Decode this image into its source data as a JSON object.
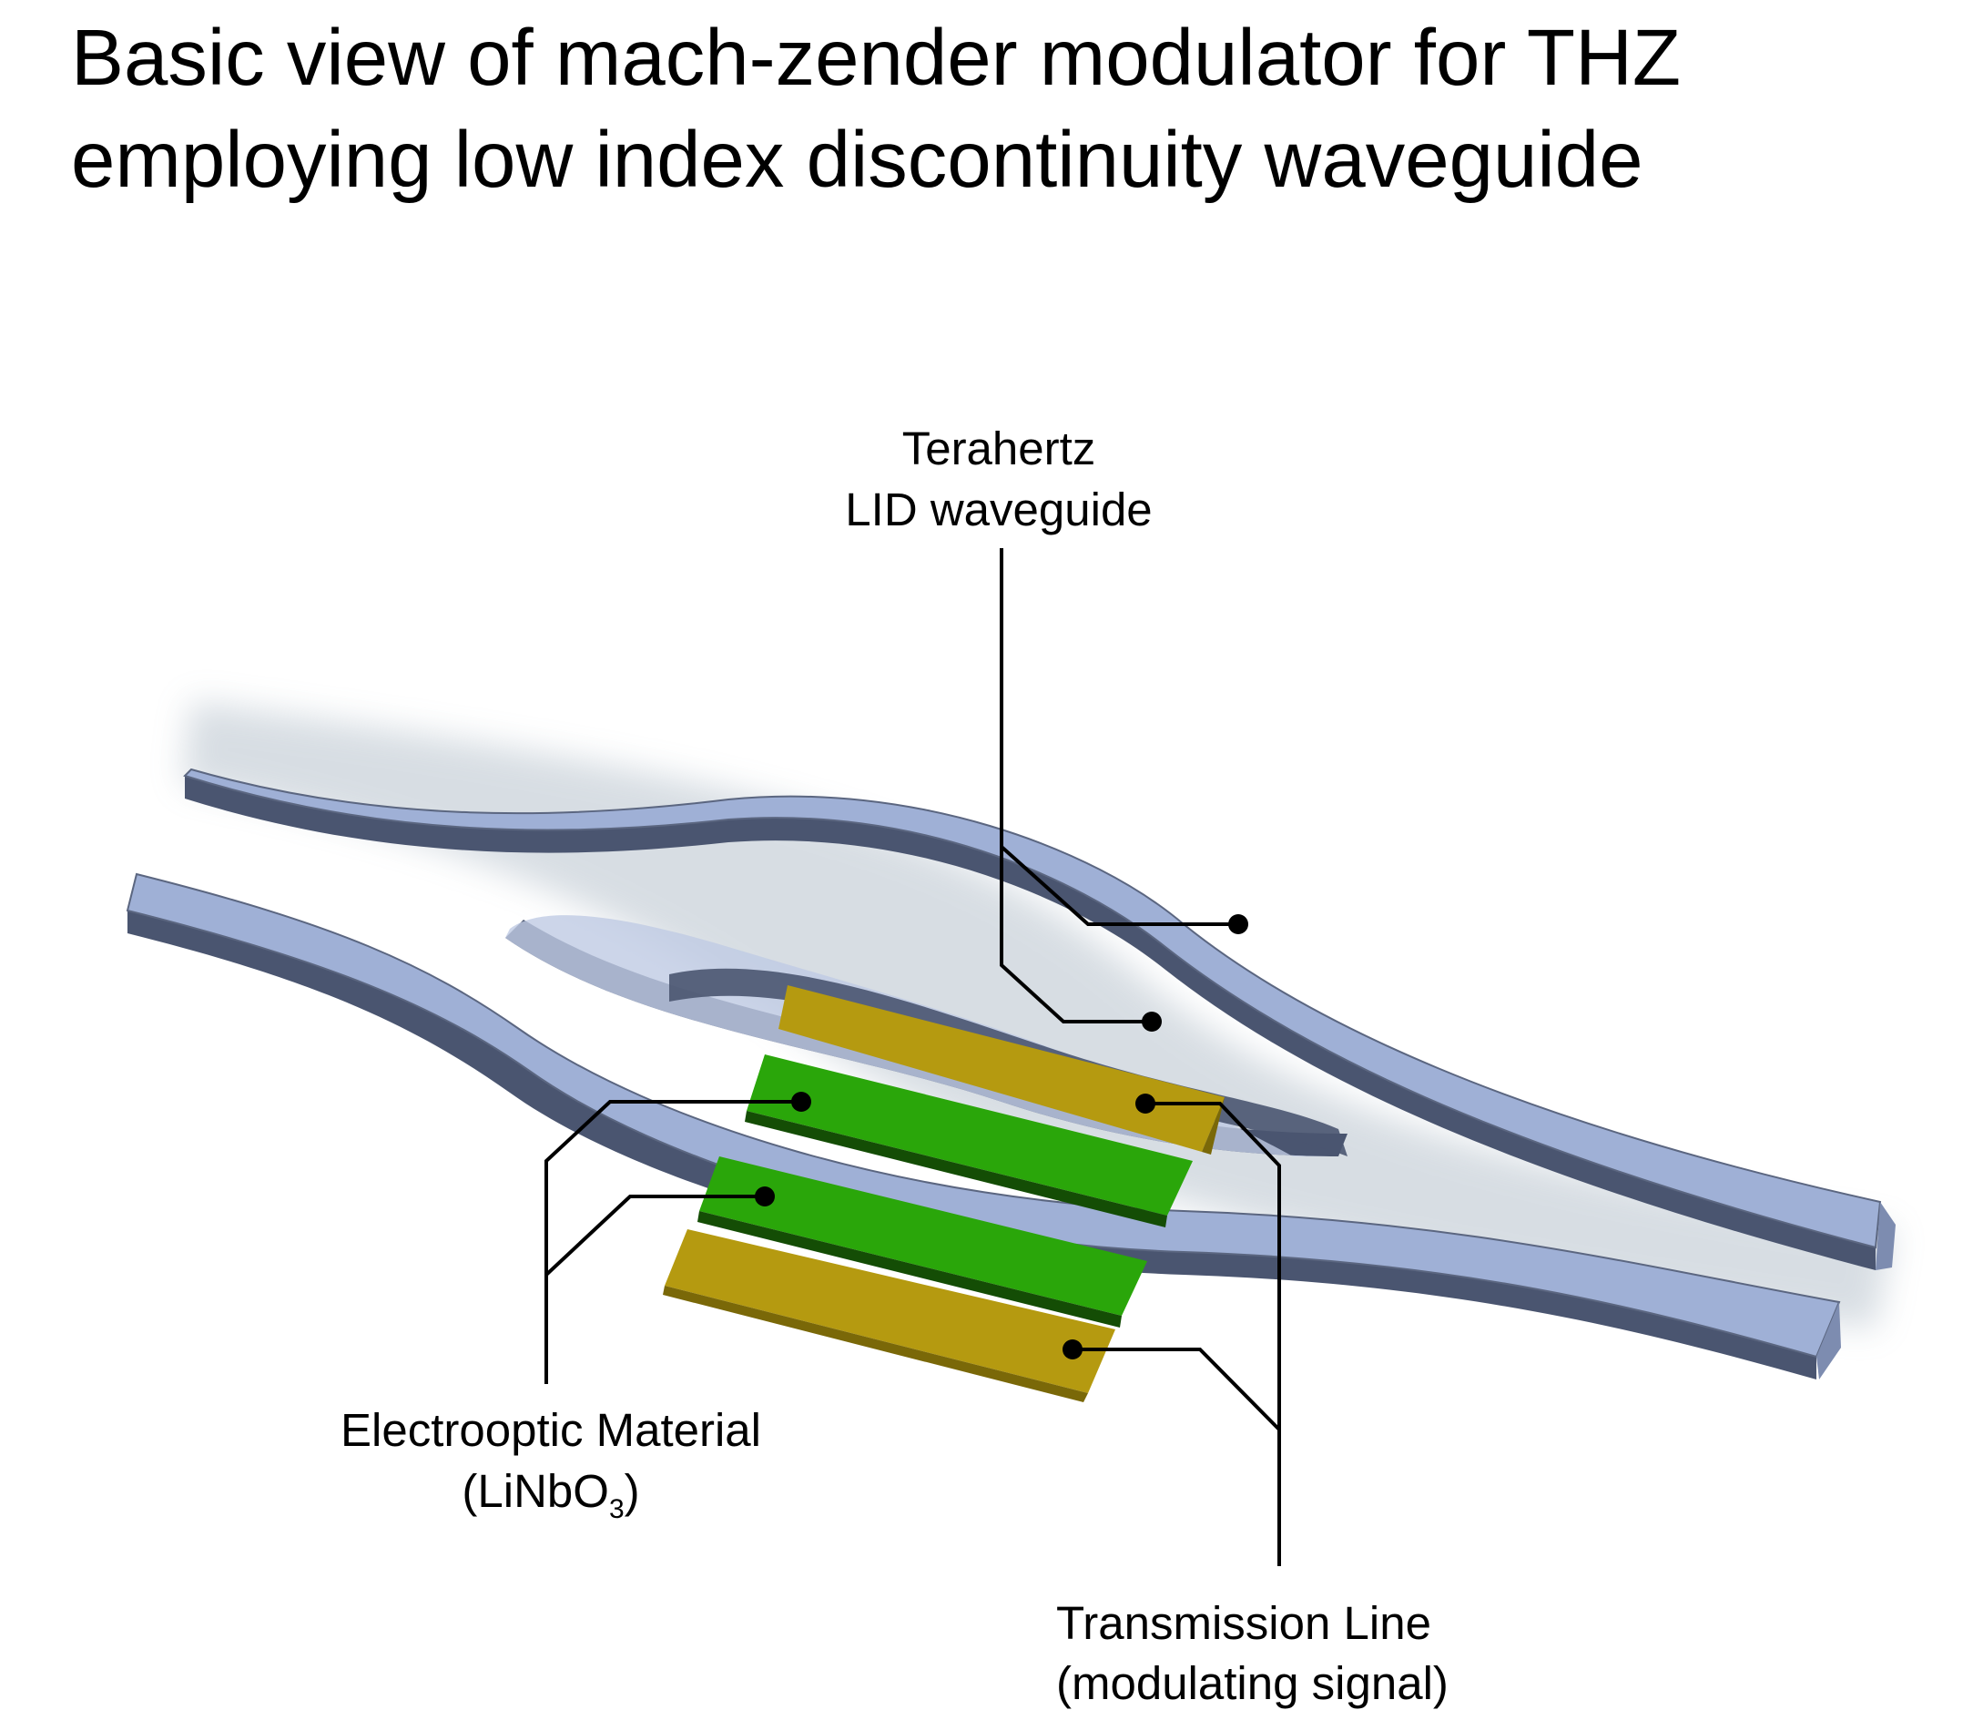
{
  "title": {
    "line1": "Basic view of mach-zender modulator for THZ",
    "line2": "employing low index discontinuity waveguide"
  },
  "labels": {
    "waveguide": {
      "line1": "Terahertz",
      "line2": "LID waveguide"
    },
    "electrooptic": {
      "line1": "Electrooptic Material",
      "line2_main": "(LiNbO",
      "line2_sub": "3",
      "line2_close": ")"
    },
    "transmission": {
      "line1": "Transmission Line",
      "line2": "(modulating signal)"
    }
  },
  "colors": {
    "waveguide_top": "#9fb0d6",
    "waveguide_side": "#4a5570",
    "electrode": "#b59a10",
    "electrooptic": "#2aa60a",
    "leader": "#000000"
  }
}
